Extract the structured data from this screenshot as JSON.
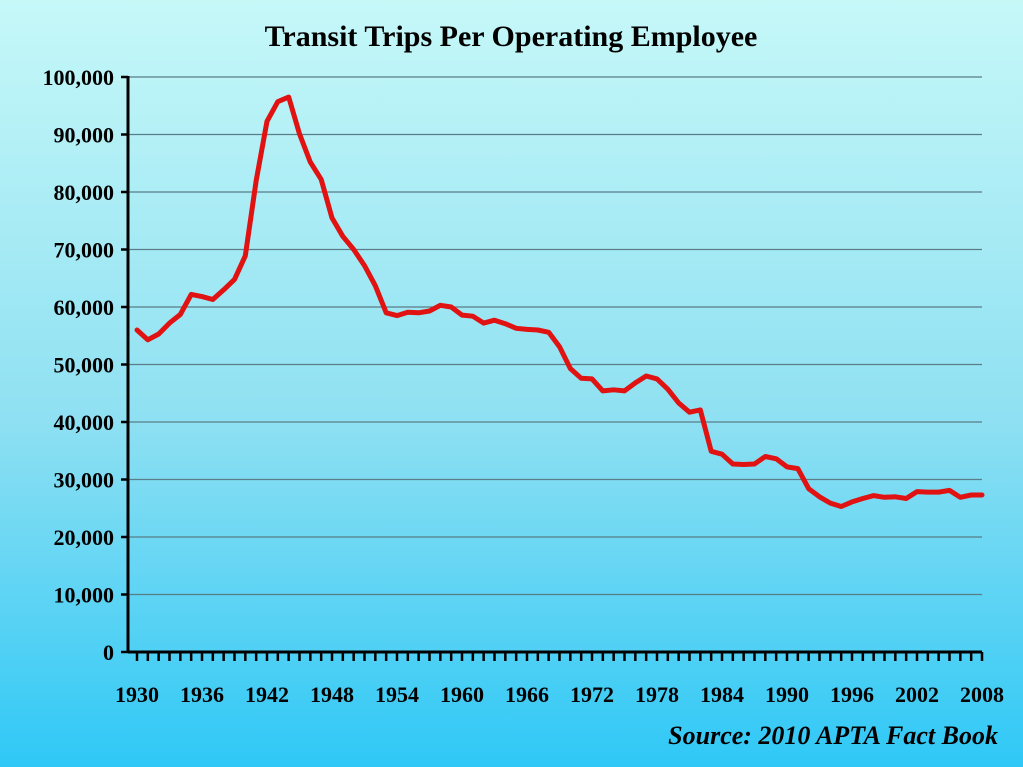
{
  "colors": {
    "series": "#e01212",
    "grid": "#5a7d87",
    "axis": "#000000"
  },
  "chart_data": {
    "type": "line",
    "title": "Transit Trips Per Operating Employee",
    "xlabel": "",
    "ylabel": "",
    "source": "Source: 2010 APTA Fact Book",
    "xlim": [
      1930,
      2008
    ],
    "ylim": [
      0,
      100000
    ],
    "x_ticks": [
      1930,
      1936,
      1942,
      1948,
      1954,
      1960,
      1966,
      1972,
      1978,
      1984,
      1990,
      1996,
      2002,
      2008
    ],
    "x_tick_labels": [
      "1930",
      "1936",
      "1942",
      "1948",
      "1954",
      "1960",
      "1966",
      "1972",
      "1978",
      "1984",
      "1990",
      "1996",
      "2002",
      "2008"
    ],
    "y_ticks": [
      0,
      10000,
      20000,
      30000,
      40000,
      50000,
      60000,
      70000,
      80000,
      90000,
      100000
    ],
    "y_tick_labels": [
      "0",
      "10,000",
      "20,000",
      "30,000",
      "40,000",
      "50,000",
      "60,000",
      "70,000",
      "80,000",
      "90,000",
      "100,000"
    ],
    "grid": true,
    "legend": "none",
    "series": [
      {
        "x": [
          1930,
          1931,
          1932,
          1933,
          1934,
          1935,
          1936,
          1937,
          1938,
          1939,
          1940,
          1941,
          1942,
          1943,
          1944,
          1945,
          1946,
          1947,
          1948,
          1949,
          1950,
          1951,
          1952,
          1953,
          1954,
          1955,
          1956,
          1957,
          1958,
          1959,
          1960,
          1961,
          1962,
          1963,
          1964,
          1965,
          1966,
          1967,
          1968,
          1969,
          1970,
          1971,
          1972,
          1973,
          1974,
          1975,
          1976,
          1977,
          1978,
          1979,
          1980,
          1981,
          1982,
          1983,
          1984,
          1985,
          1986,
          1987,
          1988,
          1989,
          1990,
          1991,
          1992,
          1993,
          1994,
          1995,
          1996,
          1997,
          1998,
          1999,
          2000,
          2001,
          2002,
          2003,
          2004,
          2005,
          2006,
          2007,
          2008
        ],
        "values": [
          56000,
          54300,
          55300,
          57200,
          58700,
          62200,
          61800,
          61300,
          63000,
          64800,
          68900,
          82000,
          92300,
          95700,
          96500,
          90100,
          85200,
          82200,
          75500,
          72300,
          70000,
          67200,
          63700,
          59000,
          58500,
          59100,
          59000,
          59300,
          60300,
          60000,
          58600,
          58400,
          57200,
          57700,
          57100,
          56300,
          56100,
          56000,
          55600,
          53100,
          49300,
          47600,
          47500,
          45400,
          45600,
          45400,
          46800,
          48000,
          47500,
          45700,
          43300,
          41700,
          42100,
          34900,
          34400,
          32700,
          32600,
          32700,
          34000,
          33600,
          32200,
          31900,
          28400,
          27000,
          25900,
          25300,
          26100,
          26700,
          27200,
          26900,
          27000,
          26700,
          27900,
          27800,
          27800,
          28100,
          26900,
          27300,
          27300
        ]
      }
    ]
  }
}
